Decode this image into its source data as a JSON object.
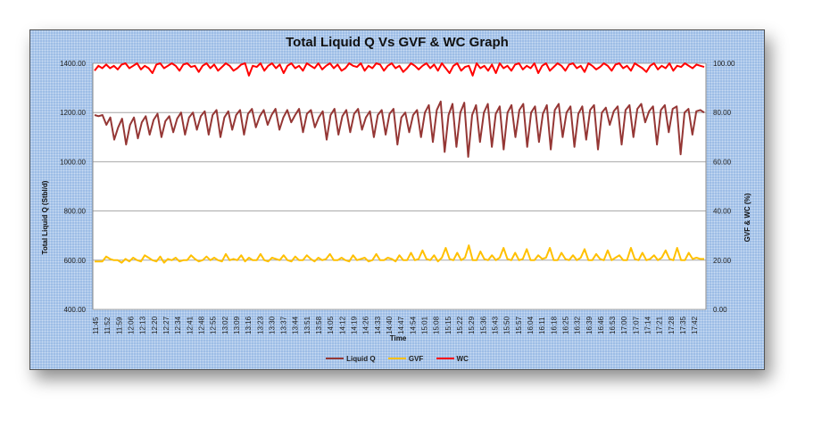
{
  "chart_data": {
    "type": "line",
    "title": "Total Liquid Q Vs GVF & WC Graph",
    "xlabel": "Time",
    "ylabel": "Total Liquid Q (Stbl/d)",
    "y2label": "GVF & WC (%)",
    "ylim": [
      400,
      1400
    ],
    "y2lim": [
      0,
      100
    ],
    "yticks": [
      "1400.00",
      "1200.00",
      "1000.00",
      "800.00",
      "600.00",
      "400.00"
    ],
    "y2ticks": [
      "100.00",
      "80.00",
      "60.00",
      "40.00",
      "20.00",
      "0.00"
    ],
    "grid": true,
    "legend_position": "bottom",
    "x_tick_labels": [
      "11:45",
      "11:52",
      "11:59",
      "12:06",
      "12:13",
      "12:20",
      "12:27",
      "12:34",
      "12:41",
      "12:48",
      "12:55",
      "13:02",
      "13:09",
      "13:16",
      "13:23",
      "13:30",
      "13:37",
      "13:44",
      "13:51",
      "13:58",
      "14:05",
      "14:12",
      "14:19",
      "14:26",
      "14:33",
      "14:40",
      "14:47",
      "14:54",
      "15:01",
      "15:08",
      "15:15",
      "15:22",
      "15:29",
      "15:36",
      "15:43",
      "15:50",
      "15:57",
      "16:04",
      "16:11",
      "16:18",
      "16:25",
      "16:32",
      "16:39",
      "16:46",
      "16:53",
      "17:00",
      "17:07",
      "17:14",
      "17:21",
      "17:28",
      "17:35",
      "17:42"
    ],
    "series": [
      {
        "name": "Liquid Q",
        "axis": "left",
        "color": "#953735",
        "values": [
          1190,
          1185,
          1190,
          1150,
          1180,
          1090,
          1140,
          1175,
          1070,
          1150,
          1180,
          1095,
          1160,
          1185,
          1110,
          1170,
          1195,
          1100,
          1165,
          1185,
          1120,
          1175,
          1200,
          1110,
          1180,
          1200,
          1130,
          1185,
          1205,
          1110,
          1190,
          1210,
          1100,
          1180,
          1205,
          1130,
          1190,
          1210,
          1110,
          1195,
          1215,
          1140,
          1185,
          1210,
          1150,
          1190,
          1215,
          1130,
          1180,
          1210,
          1160,
          1190,
          1215,
          1120,
          1195,
          1210,
          1140,
          1180,
          1205,
          1090,
          1190,
          1215,
          1110,
          1185,
          1210,
          1120,
          1195,
          1215,
          1130,
          1180,
          1205,
          1100,
          1190,
          1210,
          1110,
          1195,
          1215,
          1070,
          1180,
          1200,
          1120,
          1190,
          1210,
          1100,
          1200,
          1230,
          1080,
          1210,
          1245,
          1040,
          1190,
          1235,
          1060,
          1200,
          1240,
          1020,
          1190,
          1230,
          1080,
          1200,
          1235,
          1060,
          1195,
          1225,
          1050,
          1200,
          1230,
          1100,
          1210,
          1235,
          1060,
          1200,
          1225,
          1080,
          1195,
          1230,
          1050,
          1210,
          1235,
          1100,
          1200,
          1225,
          1060,
          1195,
          1225,
          1090,
          1210,
          1230,
          1050,
          1200,
          1220,
          1150,
          1205,
          1225,
          1070,
          1210,
          1230,
          1100,
          1215,
          1235,
          1160,
          1205,
          1225,
          1070,
          1210,
          1230,
          1120,
          1215,
          1225,
          1030,
          1200,
          1215,
          1110,
          1205,
          1210,
          1200
        ]
      },
      {
        "name": "GVF",
        "axis": "right",
        "color": "#ffc000",
        "values": [
          19.5,
          19.5,
          19.5,
          21.5,
          20.5,
          20,
          20,
          19,
          20.5,
          19.5,
          21,
          20,
          19.5,
          22,
          21,
          20,
          19.5,
          21.5,
          19,
          20.5,
          20,
          21,
          19.5,
          20,
          20,
          22,
          20.5,
          19.5,
          20,
          21.5,
          20,
          21,
          20,
          19.5,
          22.5,
          20,
          20.5,
          20,
          22,
          19.5,
          21,
          20,
          20,
          22.5,
          20,
          19.5,
          21,
          20.5,
          20,
          22,
          20,
          19.5,
          21.5,
          20,
          20,
          22,
          20.5,
          19.5,
          21,
          20,
          20.5,
          22.5,
          20,
          20,
          21,
          20,
          19.5,
          22,
          20,
          20.5,
          21,
          19.5,
          20,
          22.5,
          20,
          20,
          21,
          20.5,
          19.5,
          22,
          20,
          20,
          23,
          20,
          20.5,
          24,
          20.5,
          20,
          22,
          19.5,
          21,
          25,
          20.5,
          20,
          23,
          20,
          21,
          26,
          20,
          20,
          23.5,
          20.5,
          20,
          22,
          20,
          21,
          25,
          20.5,
          20,
          23,
          20,
          20.5,
          24.5,
          20,
          20,
          22,
          20.5,
          21,
          25,
          20,
          20,
          23,
          20.5,
          20,
          22,
          20,
          21,
          24.5,
          20,
          20,
          22.5,
          20.5,
          20,
          24,
          20,
          21,
          22,
          20,
          20,
          25,
          20.5,
          20,
          23,
          20,
          20.5,
          22,
          20,
          21,
          24,
          20.5,
          20,
          25,
          20,
          20,
          23,
          20.5,
          21,
          20.5,
          20.5
        ]
      },
      {
        "name": "WC",
        "axis": "right",
        "color": "#ff0000",
        "values": [
          97,
          99,
          98,
          99.5,
          98,
          99,
          97.5,
          99.5,
          100,
          98,
          99,
          100,
          97.5,
          99,
          98,
          96,
          99.5,
          100,
          98,
          99,
          100,
          99,
          97,
          99.5,
          100,
          98.5,
          99,
          96.5,
          99,
          100,
          98,
          99.5,
          97,
          98.5,
          100,
          99,
          97,
          98,
          99.5,
          100,
          95,
          99,
          98.5,
          100,
          97,
          99,
          100,
          98,
          99.5,
          96,
          99,
          100,
          98,
          99,
          97,
          100,
          99,
          98,
          100,
          97.5,
          99,
          100,
          98,
          99.5,
          97,
          98,
          100,
          99,
          98.5,
          100,
          97,
          99,
          98,
          100,
          99.5,
          97,
          99,
          100,
          98,
          99,
          96.5,
          98,
          100,
          99,
          97.5,
          99,
          100,
          98,
          99.5,
          97,
          100,
          98,
          96,
          99,
          100,
          97,
          98.5,
          99,
          95,
          100,
          98,
          99,
          97,
          99.5,
          96,
          100,
          98,
          99,
          97,
          99.5,
          100,
          97.5,
          99,
          98,
          100,
          96,
          99,
          100,
          97,
          98.5,
          100,
          99,
          97,
          99.5,
          100,
          98,
          99,
          96.5,
          100,
          99,
          97.5,
          98.5,
          100,
          99,
          97,
          99.5,
          100,
          98,
          99,
          97,
          100,
          99,
          98,
          96.5,
          99,
          100,
          97.5,
          99,
          98,
          100,
          97,
          99,
          98.5,
          100,
          99,
          98,
          99.5,
          99,
          98.5
        ]
      }
    ]
  }
}
